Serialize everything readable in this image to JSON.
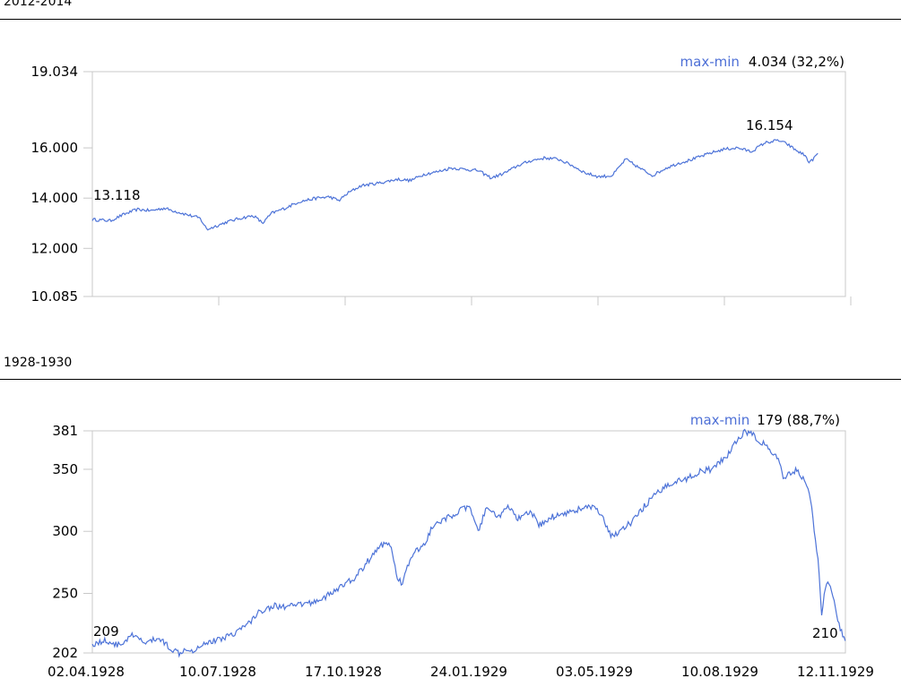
{
  "colors": {
    "line": "#4d73d8",
    "frame": "#c8c8c8",
    "accent": "#4d6fd6"
  },
  "chart_data": [
    {
      "type": "line",
      "section_title": "2012-2014",
      "maxmin_label": "max-min",
      "maxmin_value": "4.034 (32,2%)",
      "start_label": "13.118",
      "peak_label": "16.154",
      "y_ticks": [
        {
          "value": 19034,
          "label": "19.034"
        },
        {
          "value": 16000,
          "label": "16.000"
        },
        {
          "value": 14000,
          "label": "14.000"
        },
        {
          "value": 12000,
          "label": "12.000"
        },
        {
          "value": 10085,
          "label": "10.085"
        }
      ],
      "ylim": [
        10085,
        19034
      ],
      "x_ticks": 6,
      "x_labels": [],
      "n_points": 560,
      "series": [
        {
          "anchors": [
            [
              0,
              13.15
            ],
            [
              20,
              13.1
            ],
            [
              35,
              13.35
            ],
            [
              50,
              13.55
            ],
            [
              65,
              13.5
            ],
            [
              80,
              13.6
            ],
            [
              95,
              13.45
            ],
            [
              110,
              13.3
            ],
            [
              120,
              13.2
            ],
            [
              128,
              12.75
            ],
            [
              135,
              12.85
            ],
            [
              150,
              13.05
            ],
            [
              165,
              13.2
            ],
            [
              180,
              13.3
            ],
            [
              190,
              13.0
            ],
            [
              200,
              13.4
            ],
            [
              215,
              13.6
            ],
            [
              230,
              13.85
            ],
            [
              250,
              14.0
            ],
            [
              265,
              14.05
            ],
            [
              275,
              13.9
            ],
            [
              285,
              14.2
            ],
            [
              300,
              14.5
            ],
            [
              320,
              14.6
            ],
            [
              340,
              14.75
            ],
            [
              355,
              14.7
            ],
            [
              370,
              14.95
            ],
            [
              385,
              15.05
            ],
            [
              400,
              15.2
            ],
            [
              415,
              15.15
            ],
            [
              430,
              15.1
            ],
            [
              445,
              14.8
            ],
            [
              460,
              15.0
            ],
            [
              475,
              15.3
            ],
            [
              490,
              15.5
            ],
            [
              505,
              15.6
            ],
            [
              520,
              15.55
            ],
            [
              535,
              15.3
            ],
            [
              550,
              15.0
            ],
            [
              565,
              14.85
            ],
            [
              580,
              14.9
            ],
            [
              595,
              15.55
            ],
            [
              610,
              15.2
            ],
            [
              625,
              14.9
            ],
            [
              640,
              15.2
            ],
            [
              655,
              15.4
            ],
            [
              670,
              15.55
            ],
            [
              690,
              15.8
            ],
            [
              705,
              15.95
            ],
            [
              720,
              16.0
            ],
            [
              735,
              15.85
            ],
            [
              750,
              16.2
            ],
            [
              765,
              16.3
            ],
            [
              775,
              16.154
            ],
            [
              785,
              15.9
            ],
            [
              795,
              15.7
            ],
            [
              800,
              15.4
            ],
            [
              810,
              15.8
            ]
          ]
        }
      ]
    },
    {
      "type": "line",
      "section_title": "1928-1930",
      "maxmin_label": "max-min",
      "maxmin_value": "179 (88,7%)",
      "start_label": "209",
      "end_label": "210",
      "y_ticks": [
        {
          "value": 381,
          "label": "381"
        },
        {
          "value": 350,
          "label": "350"
        },
        {
          "value": 300,
          "label": "300"
        },
        {
          "value": 250,
          "label": "250"
        },
        {
          "value": 202,
          "label": "202"
        }
      ],
      "ylim": [
        202,
        381
      ],
      "x_labels": [
        "02.04.1928",
        "10.07.1928",
        "17.10.1928",
        "24.01.1929",
        "03.05.1929",
        "10.08.1929",
        "12.11.1929"
      ],
      "series": [
        {
          "anchors": [
            [
              0,
              209
            ],
            [
              15,
              212
            ],
            [
              30,
              208
            ],
            [
              45,
              216
            ],
            [
              60,
              210
            ],
            [
              75,
              214
            ],
            [
              90,
              205
            ],
            [
              98,
              202
            ],
            [
              105,
              206
            ],
            [
              115,
              204
            ],
            [
              125,
              210
            ],
            [
              140,
              212
            ],
            [
              150,
              215
            ],
            [
              160,
              218
            ],
            [
              175,
              225
            ],
            [
              190,
              236
            ],
            [
              205,
              240
            ],
            [
              220,
              239
            ],
            [
              235,
              241
            ],
            [
              250,
              243
            ],
            [
              265,
              248
            ],
            [
              280,
              255
            ],
            [
              295,
              262
            ],
            [
              305,
              270
            ],
            [
              315,
              280
            ],
            [
              325,
              288
            ],
            [
              335,
              292
            ],
            [
              345,
              262
            ],
            [
              350,
              258
            ],
            [
              360,
              280
            ],
            [
              375,
              290
            ],
            [
              385,
              305
            ],
            [
              395,
              308
            ],
            [
              410,
              315
            ],
            [
              425,
              320
            ],
            [
              435,
              300
            ],
            [
              445,
              318
            ],
            [
              460,
              312
            ],
            [
              470,
              320
            ],
            [
              480,
              310
            ],
            [
              495,
              315
            ],
            [
              505,
              305
            ],
            [
              520,
              312
            ],
            [
              535,
              315
            ],
            [
              550,
              318
            ],
            [
              565,
              320
            ],
            [
              575,
              312
            ],
            [
              585,
              296
            ],
            [
              595,
              300
            ],
            [
              610,
              308
            ],
            [
              625,
              322
            ],
            [
              640,
              332
            ],
            [
              655,
              340
            ],
            [
              670,
              342
            ],
            [
              685,
              348
            ],
            [
              700,
              350
            ],
            [
              715,
              360
            ],
            [
              725,
              370
            ],
            [
              735,
              380
            ],
            [
              745,
              378
            ],
            [
              755,
              372
            ],
            [
              765,
              365
            ],
            [
              775,
              358
            ],
            [
              780,
              340
            ],
            [
              785,
              345
            ],
            [
              795,
              350
            ],
            [
              805,
              340
            ],
            [
              810,
              330
            ],
            [
              815,
              300
            ],
            [
              820,
              270
            ],
            [
              823,
              230
            ],
            [
              827,
              255
            ],
            [
              832,
              260
            ],
            [
              837,
              245
            ],
            [
              842,
              228
            ],
            [
              847,
              215
            ],
            [
              850,
              210
            ]
          ]
        }
      ]
    }
  ]
}
